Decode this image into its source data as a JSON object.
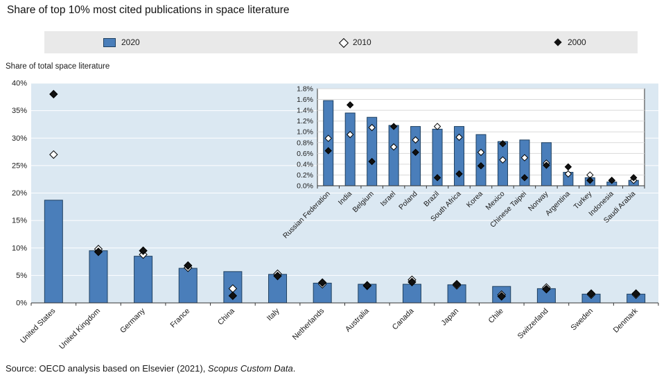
{
  "title": "Share of top 10% most cited publications in space literature",
  "y_axis_note": "Share of total space literature",
  "legend": {
    "items": [
      {
        "label": "2020",
        "marker": "bar"
      },
      {
        "label": "2010",
        "marker": "diamond-open"
      },
      {
        "label": "2000",
        "marker": "diamond-filled"
      }
    ]
  },
  "source": {
    "prefix": "Source: OECD analysis based on Elsevier (2021), ",
    "italic": "Scopus Custom Data",
    "suffix": "."
  },
  "colors": {
    "bar_fill": "#4a7eba",
    "bar_stroke": "#1f4060",
    "plot_bg": "#dbe8f2",
    "gridline": "#ffffff",
    "inset_bg": "#ffffff",
    "inset_border": "#333333",
    "inset_gridline": "#d9d9d9",
    "marker_open_fill": "#ffffff",
    "marker_stroke": "#000000",
    "marker_filled": "#111111",
    "axis": "#333333",
    "text": "#1a1a1a",
    "legend_bg": "#e9e9e9"
  },
  "chart_data": [
    {
      "type": "bar",
      "name": "main",
      "title": "Share of top 10% most cited publications in space literature",
      "xlabel": "",
      "ylabel": "Share of total space literature",
      "ylim": [
        0,
        40
      ],
      "ytick_step": 5,
      "grid": true,
      "legend_position": "top",
      "categories": [
        "United States",
        "United Kingdom",
        "Germany",
        "France",
        "China",
        "Italy",
        "Netherlands",
        "Australia",
        "Canada",
        "Japan",
        "Chile",
        "Switzerland",
        "Sweden",
        "Denmark"
      ],
      "series": [
        {
          "name": "2020",
          "style": "bar",
          "values": [
            18.7,
            9.5,
            8.5,
            6.3,
            5.7,
            5.2,
            3.6,
            3.4,
            3.4,
            3.3,
            3.0,
            2.6,
            1.6,
            1.6
          ]
        },
        {
          "name": "2010",
          "style": "diamond-open",
          "values": [
            27.0,
            9.8,
            8.8,
            6.4,
            2.6,
            5.3,
            3.4,
            3.1,
            4.2,
            3.2,
            1.5,
            2.8,
            1.5,
            1.5
          ]
        },
        {
          "name": "2000",
          "style": "diamond-filled",
          "values": [
            38.0,
            9.3,
            9.5,
            6.8,
            1.3,
            4.9,
            3.7,
            3.2,
            3.8,
            3.4,
            1.2,
            2.5,
            1.7,
            1.7
          ]
        }
      ]
    },
    {
      "type": "bar",
      "name": "inset",
      "title": "",
      "xlabel": "",
      "ylabel": "",
      "ylim": [
        0,
        1.8
      ],
      "ytick_step": 0.2,
      "grid": true,
      "categories": [
        "Russian Federation",
        "India",
        "Belgium",
        "Israel",
        "Poland",
        "Brazil",
        "South Africa",
        "Korea",
        "Mexico",
        "Chinese Taipei",
        "Norway",
        "Argentina",
        "Turkey",
        "Indonesia",
        "Saudi Arabia"
      ],
      "series": [
        {
          "name": "2020",
          "style": "bar",
          "values": [
            1.58,
            1.35,
            1.27,
            1.12,
            1.1,
            1.05,
            1.1,
            0.95,
            0.82,
            0.85,
            0.8,
            0.25,
            0.15,
            0.07,
            0.1
          ]
        },
        {
          "name": "2010",
          "style": "diamond-open",
          "values": [
            0.88,
            0.95,
            1.08,
            0.72,
            0.85,
            1.1,
            0.9,
            0.62,
            0.48,
            0.52,
            0.42,
            0.22,
            0.2,
            0.1,
            0.1
          ]
        },
        {
          "name": "2000",
          "style": "diamond-filled",
          "values": [
            0.65,
            1.5,
            0.45,
            1.1,
            0.62,
            0.15,
            0.22,
            0.37,
            0.78,
            0.15,
            0.38,
            0.35,
            0.1,
            0.1,
            0.15
          ]
        }
      ]
    }
  ]
}
